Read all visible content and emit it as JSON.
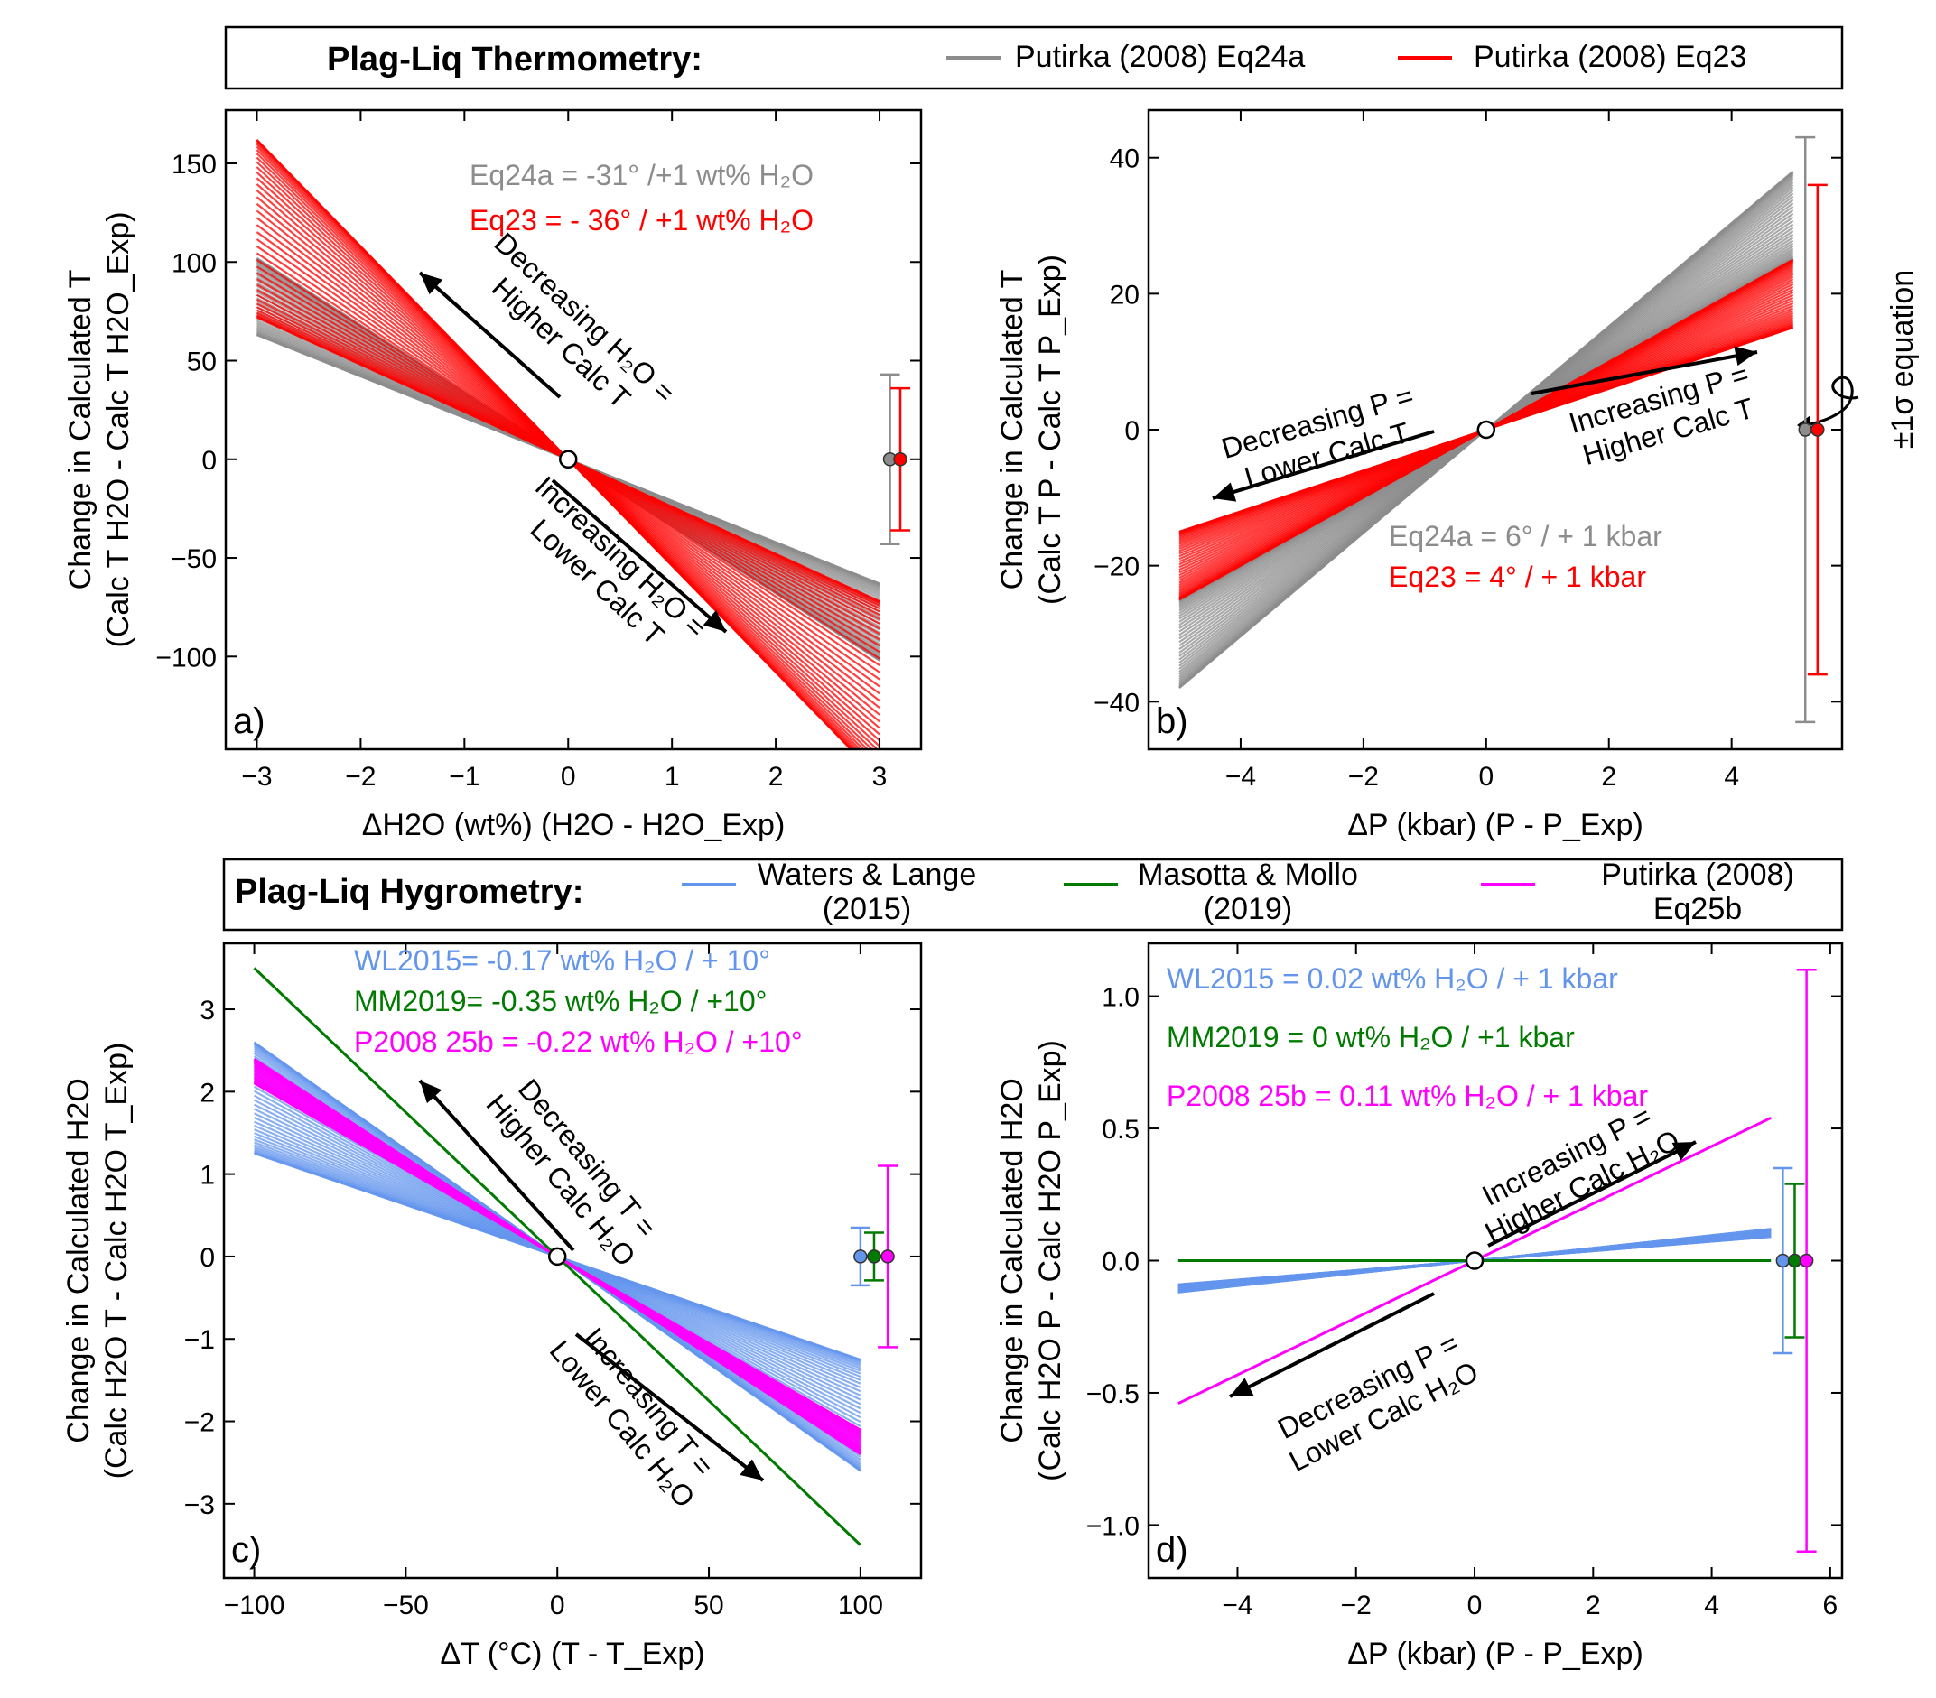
{
  "colors": {
    "eq24a": "#8c8c8c",
    "eq23": "#ff0000",
    "wl": "#6495ed",
    "mm": "#007a00",
    "p25b": "#ff00ff"
  },
  "headers": {
    "thermo": {
      "title": "Plag-Liq Thermometry:",
      "leg1": "Putirka (2008) Eq24a",
      "leg2": "Putirka (2008) Eq23"
    },
    "hygro": {
      "title": "Plag-Liq Hygrometry:",
      "leg1a": "Waters & Lange",
      "leg1b": "(2015)",
      "leg2a": "Masotta & Mollo",
      "leg2b": "(2019)",
      "leg3a": "Putirka (2008)",
      "leg3b": "Eq25b"
    }
  },
  "sigma_label": "±1σ equation",
  "chart_data": [
    {
      "type": "line",
      "panel": "a)",
      "xlabel": "ΔH2O (wt%) (H2O - H2O_Exp)",
      "ylabel1": "Change in Calculated T",
      "ylabel2": "(Calc T H2O - Calc T H2O_Exp)",
      "xlim": [
        -3.3,
        3.4
      ],
      "ylim": [
        -147,
        177
      ],
      "xticks": [
        -3,
        -2,
        -1,
        0,
        1,
        2,
        3
      ],
      "yticks": [
        -100,
        -50,
        0,
        50,
        100,
        150
      ],
      "series": [
        {
          "name": "Eq24a",
          "slope_range": [
            -34,
            -21
          ],
          "x": [
            -3,
            3
          ]
        },
        {
          "name": "Eq23",
          "slope_range": [
            -54,
            -24
          ],
          "x": [
            -3,
            3
          ]
        }
      ],
      "sigma": [
        {
          "x": 3.1,
          "sd": 43
        },
        {
          "x": 3.2,
          "sd": 36
        }
      ],
      "notes": [
        "Eq24a = -31° /+1 wt% H₂O",
        "Eq23 = - 36° / +1 wt% H₂O"
      ],
      "arrow_up": [
        "Decreasing H₂O =",
        "Higher Calc T"
      ],
      "arrow_down": [
        "Increasing H₂O =",
        "Lower Calc T"
      ]
    },
    {
      "type": "line",
      "panel": "b)",
      "xlabel": "ΔP (kbar) (P - P_Exp)",
      "ylabel1": "Change in Calculated T",
      "ylabel2": "(Calc T P - Calc T P_Exp)",
      "xlim": [
        -5.5,
        5.8
      ],
      "ylim": [
        -47,
        47
      ],
      "xticks": [
        -4,
        -2,
        0,
        2,
        4
      ],
      "yticks": [
        -40,
        -20,
        0,
        20,
        40
      ],
      "series": [
        {
          "name": "Eq24a",
          "slope_range": [
            5,
            7.6
          ],
          "x": [
            -5,
            5
          ]
        },
        {
          "name": "Eq23",
          "slope_range": [
            3,
            5
          ],
          "x": [
            -5,
            5
          ]
        }
      ],
      "sigma": [
        {
          "x": 5.2,
          "sd": 43
        },
        {
          "x": 5.4,
          "sd": 36
        }
      ],
      "notes": [
        "Eq24a = 6° / + 1 kbar",
        "Eq23 = 4° / + 1 kbar"
      ],
      "arrow_left": [
        "Decreasing P =",
        "Lower Calc T"
      ],
      "arrow_right": [
        "Increasing P =",
        "Higher Calc T"
      ]
    },
    {
      "type": "line",
      "panel": "c)",
      "xlabel": "ΔT (°C) (T - T_Exp)",
      "ylabel1": "Change in Calculated H2O",
      "ylabel2": "(Calc H2O T - Calc H2O T_Exp)",
      "xlim": [
        -110,
        120
      ],
      "ylim": [
        -3.9,
        3.8
      ],
      "xticks": [
        -100,
        -50,
        0,
        50,
        100
      ],
      "yticks": [
        -3,
        -2,
        -1,
        0,
        1,
        2,
        3
      ],
      "series": [
        {
          "name": "WL2015",
          "slope_range": [
            -0.026,
            -0.0125
          ],
          "x": [
            -100,
            100
          ]
        },
        {
          "name": "MM2019",
          "slope_range": [
            -0.035,
            -0.035
          ],
          "x": [
            -100,
            100
          ]
        },
        {
          "name": "P2008 25b",
          "slope_range": [
            -0.024,
            -0.021
          ],
          "x": [
            -100,
            100
          ]
        }
      ],
      "sigma": [
        {
          "x": 100,
          "sd": 0.35
        },
        {
          "x": 104.5,
          "sd": 0.29
        },
        {
          "x": 109,
          "sd": 1.1
        }
      ],
      "notes": [
        "WL2015= -0.17 wt% H₂O / + 10°",
        "MM2019= -0.35 wt% H₂O / +10°",
        "P2008 25b = -0.22 wt% H₂O / +10°"
      ],
      "arrow_up": [
        "Decreasing T =",
        "Higher Calc H₂O"
      ],
      "arrow_down": [
        "Increasing T =",
        "Lower Calc H₂O"
      ]
    },
    {
      "type": "line",
      "panel": "d)",
      "xlabel": "ΔP (kbar) (P - P_Exp)",
      "ylabel1": "Change in Calculated H2O",
      "ylabel2": "(Calc H2O P - Calc H2O P_Exp)",
      "xlim": [
        -5.5,
        6.2
      ],
      "ylim": [
        -1.2,
        1.2
      ],
      "xticks": [
        -4,
        -2,
        0,
        2,
        4,
        6
      ],
      "yticks": [
        -1.0,
        -0.5,
        0.0,
        0.5,
        1.0
      ],
      "series": [
        {
          "name": "WL2015",
          "slope_range": [
            0.018,
            0.024
          ],
          "x": [
            -5,
            5
          ]
        },
        {
          "name": "MM2019",
          "slope_range": [
            0,
            0
          ],
          "x": [
            -5,
            5
          ]
        },
        {
          "name": "P2008 25b",
          "slope_range": [
            0.108,
            0.108
          ],
          "x": [
            -5,
            5
          ]
        }
      ],
      "sigma": [
        {
          "x": 5.2,
          "sd": 0.35
        },
        {
          "x": 5.4,
          "sd": 0.29
        },
        {
          "x": 5.6,
          "sd": 1.1
        }
      ],
      "notes": [
        "WL2015 = 0.02 wt% H₂O / + 1 kbar",
        "MM2019 = 0 wt% H₂O / +1 kbar",
        "P2008 25b = 0.11 wt% H₂O / + 1 kbar"
      ],
      "arrow_right": [
        "Increasing P =",
        "Higher Calc H₂O"
      ],
      "arrow_left": [
        "Decreasing P =",
        "Lower Calc H₂O"
      ]
    }
  ]
}
